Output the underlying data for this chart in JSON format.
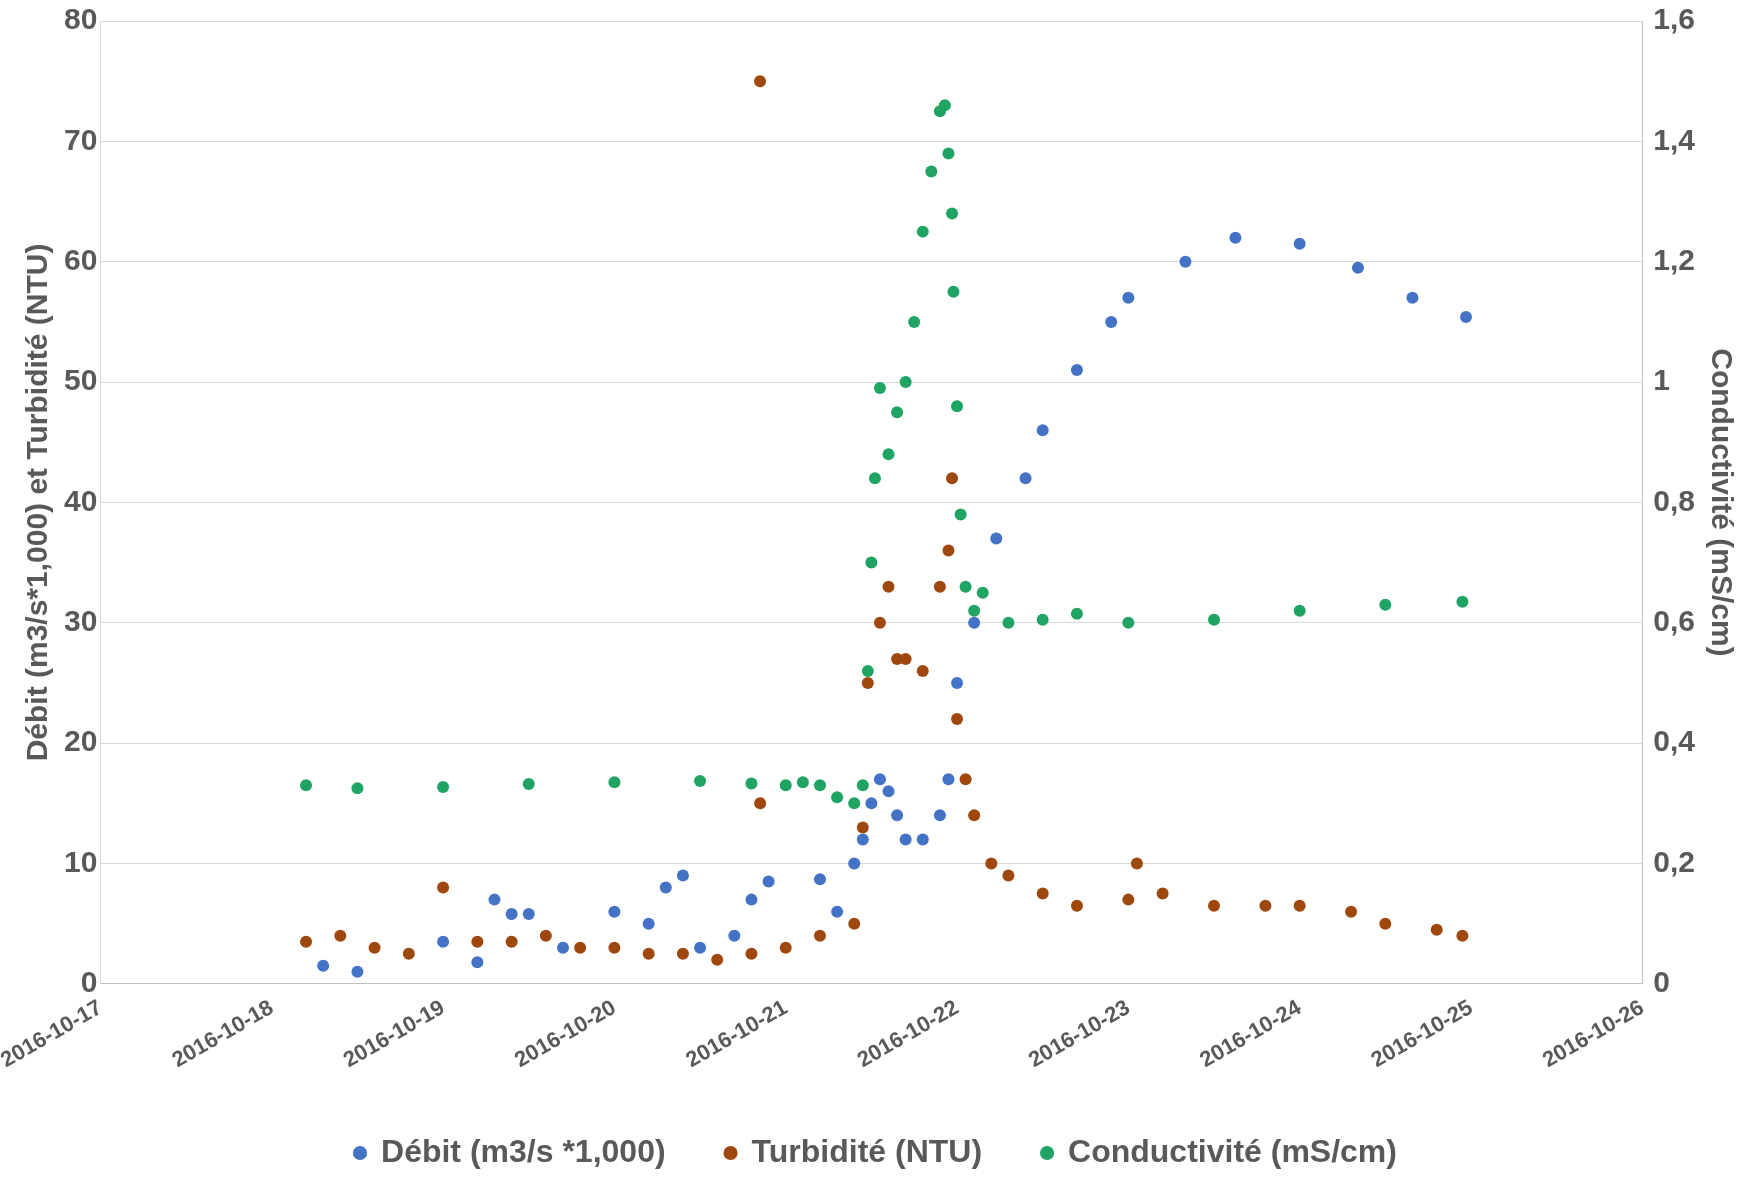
{
  "chart_data": {
    "type": "scatter",
    "ylabel": "Débit (m3/s*1,000) et Turbidité (NTU)",
    "y2label": "Conductivité (mS/cm)",
    "xlim": [
      "2016-10-17",
      "2016-10-26"
    ],
    "xticks": [
      "2016-10-17",
      "2016-10-18",
      "2016-10-19",
      "2016-10-20",
      "2016-10-21",
      "2016-10-22",
      "2016-10-23",
      "2016-10-24",
      "2016-10-25",
      "2016-10-26"
    ],
    "ylim": [
      0,
      80
    ],
    "yticks": [
      0,
      10,
      20,
      30,
      40,
      50,
      60,
      70,
      80
    ],
    "y2lim": [
      0,
      1.6
    ],
    "y2ticks": [
      0,
      {
        "value": 0.2,
        "label": "0,2"
      },
      {
        "value": 0.4,
        "label": "0,4"
      },
      {
        "value": 0.6,
        "label": "0,6"
      },
      {
        "value": 0.8,
        "label": "0,8"
      },
      {
        "value": 1,
        "label": "1"
      },
      {
        "value": 1.2,
        "label": "1,2"
      },
      {
        "value": 1.4,
        "label": "1,4"
      },
      {
        "value": 1.6,
        "label": "1,6"
      }
    ],
    "grid": "y",
    "legend": "bottom",
    "marker": "circle",
    "series": [
      {
        "name": "Débit (m3/s *1,000)",
        "color": "#4472c4",
        "x": [
          "2016-10-18T07:12",
          "2016-10-18T12:00",
          "2016-10-19T00:00",
          "2016-10-19T04:48",
          "2016-10-19T07:12",
          "2016-10-19T09:36",
          "2016-10-19T12:00",
          "2016-10-19T16:48",
          "2016-10-20T00:00",
          "2016-10-20T04:48",
          "2016-10-20T07:12",
          "2016-10-20T09:36",
          "2016-10-20T12:00",
          "2016-10-20T16:48",
          "2016-10-20T19:12",
          "2016-10-20T21:36",
          "2016-10-21T04:48",
          "2016-10-21T07:12",
          "2016-10-21T09:36",
          "2016-10-21T10:48",
          "2016-10-21T12:00",
          "2016-10-21T13:12",
          "2016-10-21T14:24",
          "2016-10-21T15:36",
          "2016-10-21T16:48",
          "2016-10-21T19:12",
          "2016-10-21T21:36",
          "2016-10-21T22:48",
          "2016-10-22T00:00",
          "2016-10-22T02:24",
          "2016-10-22T05:30",
          "2016-10-22T09:36",
          "2016-10-22T12:00",
          "2016-10-22T16:48",
          "2016-10-22T21:36",
          "2016-10-23T00:00",
          "2016-10-23T08:00",
          "2016-10-23T15:00",
          "2016-10-24T00:00",
          "2016-10-24T08:10",
          "2016-10-24T15:48",
          "2016-10-24T23:18"
        ],
        "values": [
          1.5,
          1,
          3.5,
          1.8,
          7,
          5.8,
          5.8,
          3,
          6,
          5,
          8,
          9,
          3,
          4,
          7,
          8.5,
          8.7,
          6,
          10,
          12,
          15,
          17,
          16,
          14,
          12,
          12,
          14,
          17,
          25,
          30,
          37,
          42,
          46,
          51,
          55,
          57,
          60,
          62,
          61.5,
          59.5,
          57,
          55.4
        ]
      },
      {
        "name": "Turbidité (NTU)",
        "color": "#9e480e",
        "x": [
          "2016-10-18T04:48",
          "2016-10-18T09:36",
          "2016-10-18T14:24",
          "2016-10-18T19:12",
          "2016-10-19T00:00",
          "2016-10-19T04:48",
          "2016-10-19T09:36",
          "2016-10-19T14:24",
          "2016-10-19T19:12",
          "2016-10-20T00:00",
          "2016-10-20T04:48",
          "2016-10-20T09:36",
          "2016-10-20T14:24",
          "2016-10-20T19:12",
          "2016-10-20T20:24",
          "2016-10-20T20:25",
          "2016-10-21T00:00",
          "2016-10-21T04:48",
          "2016-10-21T09:36",
          "2016-10-21T10:48",
          "2016-10-21T11:30",
          "2016-10-21T13:12",
          "2016-10-21T14:24",
          "2016-10-21T15:36",
          "2016-10-21T16:48",
          "2016-10-21T19:12",
          "2016-10-21T21:36",
          "2016-10-21T22:48",
          "2016-10-21T23:18",
          "2016-10-22T00:00",
          "2016-10-22T01:12",
          "2016-10-22T02:24",
          "2016-10-22T04:48",
          "2016-10-22T07:12",
          "2016-10-22T12:00",
          "2016-10-22T16:48",
          "2016-10-23T00:00",
          "2016-10-23T01:12",
          "2016-10-23T04:48",
          "2016-10-23T12:00",
          "2016-10-23T19:12",
          "2016-10-24T00:00",
          "2016-10-24T07:12",
          "2016-10-24T12:00",
          "2016-10-24T19:12",
          "2016-10-24T22:48"
        ],
        "values": [
          3.5,
          4,
          3,
          2.5,
          8,
          3.5,
          3.5,
          4,
          3,
          3,
          2.5,
          2.5,
          2,
          2.5,
          75,
          15,
          3,
          4,
          5,
          13,
          25,
          30,
          33,
          27,
          27,
          26,
          33,
          36,
          42,
          22,
          17,
          14,
          10,
          9,
          7.5,
          6.5,
          7,
          10,
          7.5,
          6.5,
          6.5,
          6.5,
          6,
          5,
          4.5,
          4
        ]
      },
      {
        "name": "Conductivité (mS/cm)",
        "color": "#1fa463",
        "axis": "y2",
        "x": [
          "2016-10-18T04:48",
          "2016-10-18T12:00",
          "2016-10-19T00:00",
          "2016-10-19T12:00",
          "2016-10-20T00:00",
          "2016-10-20T12:00",
          "2016-10-20T19:12",
          "2016-10-21T00:00",
          "2016-10-21T02:24",
          "2016-10-21T04:48",
          "2016-10-21T07:12",
          "2016-10-21T09:36",
          "2016-10-21T10:48",
          "2016-10-21T11:30",
          "2016-10-21T12:00",
          "2016-10-21T12:30",
          "2016-10-21T13:12",
          "2016-10-21T14:24",
          "2016-10-21T15:36",
          "2016-10-21T16:48",
          "2016-10-21T18:00",
          "2016-10-21T19:12",
          "2016-10-21T20:24",
          "2016-10-21T21:36",
          "2016-10-21T22:18",
          "2016-10-21T22:48",
          "2016-10-21T23:18",
          "2016-10-21T23:30",
          "2016-10-22T00:00",
          "2016-10-22T00:30",
          "2016-10-22T01:12",
          "2016-10-22T02:24",
          "2016-10-22T03:36",
          "2016-10-22T07:12",
          "2016-10-22T12:00",
          "2016-10-22T16:48",
          "2016-10-23T00:00",
          "2016-10-23T12:00",
          "2016-10-24T00:00",
          "2016-10-24T12:00",
          "2016-10-24T22:48"
        ],
        "values": [
          0.33,
          0.325,
          0.327,
          0.332,
          0.335,
          0.337,
          0.333,
          0.33,
          0.335,
          0.33,
          0.31,
          0.3,
          0.33,
          0.52,
          0.7,
          0.84,
          0.99,
          0.88,
          0.95,
          1,
          1.1,
          1.25,
          1.35,
          1.45,
          1.46,
          1.38,
          1.28,
          1.15,
          0.96,
          0.78,
          0.66,
          0.62,
          0.65,
          0.6,
          0.605,
          0.615,
          0.6,
          0.605,
          0.62,
          0.63,
          0.635
        ]
      }
    ]
  }
}
